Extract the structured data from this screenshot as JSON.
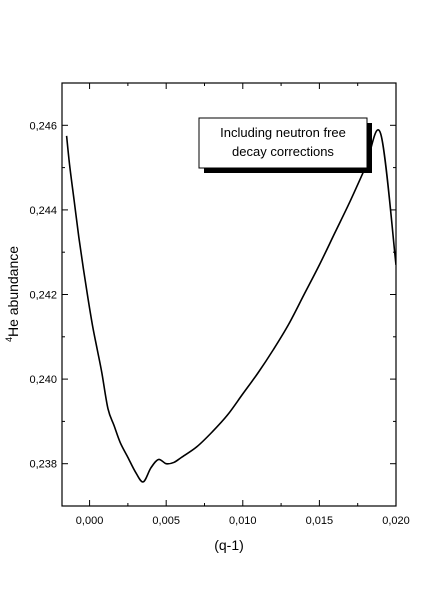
{
  "chart_data": {
    "type": "line",
    "title": "",
    "xlabel": "(q-1)",
    "ylabel_sup": "4",
    "ylabel_main": "He abundance",
    "xlim": [
      -0.0018,
      0.02
    ],
    "ylim": [
      0.237,
      0.247
    ],
    "xticks": [
      0.0,
      0.005,
      0.01,
      0.015,
      0.02
    ],
    "xtick_labels": [
      "0,000",
      "0,005",
      "0,010",
      "0,015",
      "0,020"
    ],
    "yticks": [
      0.238,
      0.24,
      0.242,
      0.244,
      0.246
    ],
    "ytick_labels": [
      "0,238",
      "0,240",
      "0,242",
      "0,244",
      "0,246"
    ],
    "annotation": {
      "line1": "Including neutron free",
      "line2": "decay corrections"
    },
    "series": [
      {
        "line_color": "#000000",
        "x": [
          -0.0015,
          -0.0013,
          -0.001,
          -0.0007,
          -0.0004,
          -0.0001,
          0.0002,
          0.0005,
          0.0008,
          0.0012,
          0.0016,
          0.002,
          0.0025,
          0.003,
          0.0035,
          0.004,
          0.0045,
          0.005,
          0.0055,
          0.006,
          0.007,
          0.008,
          0.009,
          0.01,
          0.011,
          0.012,
          0.013,
          0.014,
          0.015,
          0.016,
          0.017,
          0.018,
          0.019,
          0.02
        ],
        "y": [
          0.24575,
          0.24505,
          0.2442,
          0.24335,
          0.2426,
          0.2419,
          0.24125,
          0.2407,
          0.24015,
          0.2393,
          0.2389,
          0.2385,
          0.23815,
          0.2378,
          0.23757,
          0.2379,
          0.2381,
          0.238,
          0.23803,
          0.23815,
          0.2384,
          0.23875,
          0.23915,
          0.23965,
          0.24015,
          0.2407,
          0.2413,
          0.242,
          0.2427,
          0.24345,
          0.2442,
          0.245,
          0.2458,
          0.2427
        ]
      }
    ]
  }
}
